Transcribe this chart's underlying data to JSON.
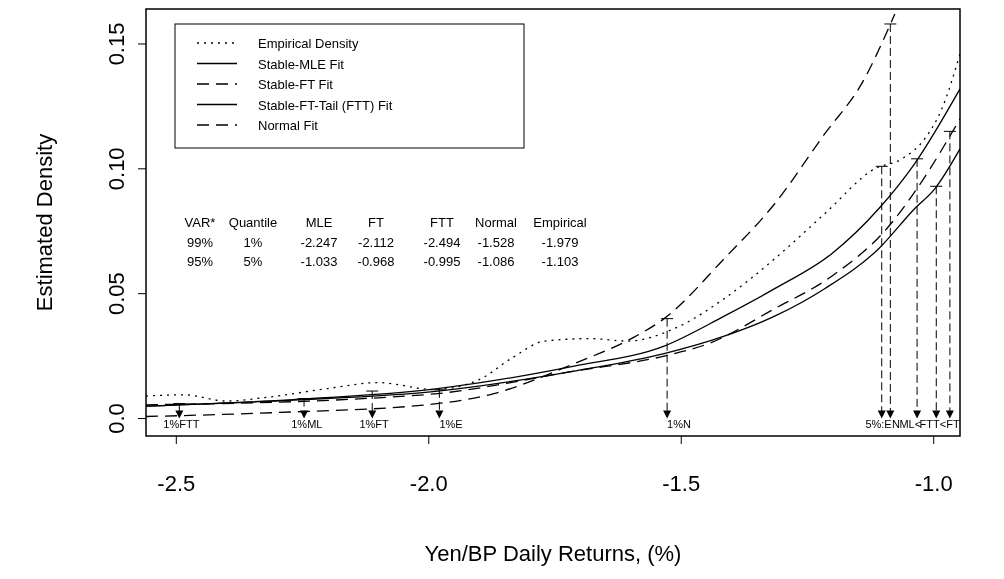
{
  "chart_data": {
    "type": "line",
    "xlabel": "Yen/BP Daily Returns, (%)",
    "ylabel": "Estimated Density",
    "xlim": [
      -2.56,
      -0.948
    ],
    "ylim": [
      -0.007,
      0.164
    ],
    "xticks": [
      {
        "value": -2.5,
        "label": "-2.5"
      },
      {
        "value": -2,
        "label": "-2.0"
      },
      {
        "value": -1.5,
        "label": "-1.5"
      },
      {
        "value": -1,
        "label": "-1.0"
      }
    ],
    "yticks": [
      {
        "value": 0,
        "label": "0.0"
      },
      {
        "value": 0.05,
        "label": "0.05"
      },
      {
        "value": 0.1,
        "label": "0.10"
      },
      {
        "value": 0.15,
        "label": "0.15"
      }
    ],
    "grid": false,
    "legend": "top left",
    "series": [
      {
        "name": "Empirical Density",
        "color": "#000000",
        "line_style": "dotted",
        "x": [
          -2.56,
          -2.486,
          -2.4,
          -2.32,
          -2.2,
          -2.1,
          -1.99,
          -1.9,
          -1.837,
          -1.77,
          -1.68,
          -1.605,
          -1.514,
          -1.415,
          -1.315,
          -1.216,
          -1.117,
          -1.063,
          -1.018,
          -0.984,
          -0.948
        ],
        "values": [
          0.009,
          0.0095,
          0.007,
          0.0085,
          0.012,
          0.0144,
          0.0116,
          0.0156,
          0.024,
          0.031,
          0.032,
          0.031,
          0.036,
          0.048,
          0.064,
          0.082,
          0.1,
          0.104,
          0.112,
          0.124,
          0.146
        ]
      },
      {
        "name": "Stable-MLE Fit",
        "color": "#000000",
        "line_style": "solid",
        "x": [
          -2.56,
          -2.268,
          -1.982,
          -1.712,
          -1.534,
          -1.415,
          -1.315,
          -1.202,
          -1.109,
          -1.038,
          -0.948
        ],
        "values": [
          0.005,
          0.0076,
          0.012,
          0.021,
          0.029,
          0.041,
          0.052,
          0.066,
          0.084,
          0.102,
          0.132
        ]
      },
      {
        "name": "Stable-FT Fit",
        "color": "#000000",
        "line_style": "dashed",
        "x": [
          -2.56,
          -2.1,
          -1.982,
          -1.712,
          -1.534,
          -1.446,
          -1.315,
          -1.202,
          -1.089,
          -1.03,
          -0.948
        ],
        "values": [
          0.0055,
          0.0083,
          0.01,
          0.019,
          0.025,
          0.03,
          0.044,
          0.057,
          0.077,
          0.093,
          0.12
        ]
      },
      {
        "name": "Stable-FT-Tail (FTT) Fit",
        "color": "#000000",
        "line_style": "solid",
        "x": [
          -2.56,
          -2.268,
          -1.982,
          -1.712,
          -1.534,
          -1.415,
          -1.315,
          -1.216,
          -1.109,
          -1.038,
          -0.998,
          -0.948
        ],
        "values": [
          0.005,
          0.0074,
          0.011,
          0.019,
          0.026,
          0.033,
          0.041,
          0.052,
          0.068,
          0.084,
          0.092,
          0.108
        ]
      },
      {
        "name": "Normal Fit",
        "color": "#000000",
        "line_style": "dashed",
        "x": [
          -2.56,
          -2.3,
          -2.0,
          -1.871,
          -1.712,
          -1.599,
          -1.534,
          -1.415,
          -1.315,
          -1.216,
          -1.143,
          -1.077
        ],
        "values": [
          0.0008,
          0.0024,
          0.0056,
          0.01,
          0.022,
          0.032,
          0.04,
          0.064,
          0.086,
          0.114,
          0.134,
          0.162
        ]
      }
    ],
    "annotations": [
      "VAR*",
      "Quantile",
      "MLE",
      "FT",
      "FTT",
      "Normal",
      "Empirical",
      "99%",
      "1%",
      "-2.247",
      "-2.112",
      "-2.494",
      "-1.528",
      "-1.979",
      "95%",
      "5%",
      "-1.033",
      "-0.968",
      "-0.995",
      "-1.086",
      "-1.103",
      {
        "text": "1%FTT",
        "x": -2.494,
        "y": 0.006
      },
      {
        "text": "1%ML",
        "x": -2.247,
        "y": 0.008
      },
      {
        "text": "1%FT",
        "x": -2.112,
        "y": 0.011
      },
      {
        "text": "1%E",
        "x": -1.979,
        "y": 0.0115
      },
      {
        "text": "1%N",
        "x": -1.528,
        "y": 0.04
      },
      {
        "text": "5%:E",
        "x": -1.103,
        "y": 0.101
      },
      {
        "text": "N",
        "x": -1.086,
        "y": 0.158
      },
      {
        "text": "ML<",
        "x": -1.033,
        "y": 0.104
      },
      {
        "text": "FTT<",
        "x": -0.995,
        "y": 0.093
      },
      {
        "text": "FT",
        "x": -0.968,
        "y": 0.115
      }
    ]
  }
}
